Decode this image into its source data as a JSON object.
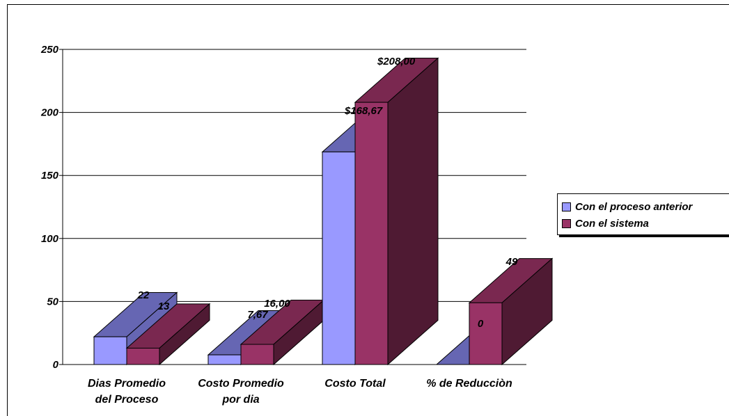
{
  "chart_data": {
    "type": "bar",
    "categories": [
      [
        "Dias Promedio",
        "del Proceso"
      ],
      [
        "Costo Promedio",
        "por dia"
      ],
      [
        "Costo Total"
      ],
      [
        "% de Reducciòn"
      ]
    ],
    "series": [
      {
        "name": "Con el proceso anterior",
        "values": [
          22,
          7.67,
          168.67,
          0
        ],
        "labels": [
          "22",
          "7,67",
          "$168,67",
          ""
        ],
        "color": "#9999ff"
      },
      {
        "name": "Con el sistema",
        "values": [
          13,
          16,
          208,
          49
        ],
        "labels": [
          "13",
          "16,00",
          "$208,00",
          "49"
        ],
        "color": "#993366"
      }
    ],
    "extra_labels": [
      "0"
    ],
    "yticks": [
      0,
      50,
      100,
      150,
      200,
      250
    ],
    "ylim": [
      0,
      250
    ],
    "grid": true,
    "legend_position": "right"
  },
  "colors": {
    "series1_front": "#9999ff",
    "series1_side": "#6666b3",
    "series2_front": "#993366",
    "series2_side": "#4f1a33",
    "series2_top": "#7a2850"
  }
}
